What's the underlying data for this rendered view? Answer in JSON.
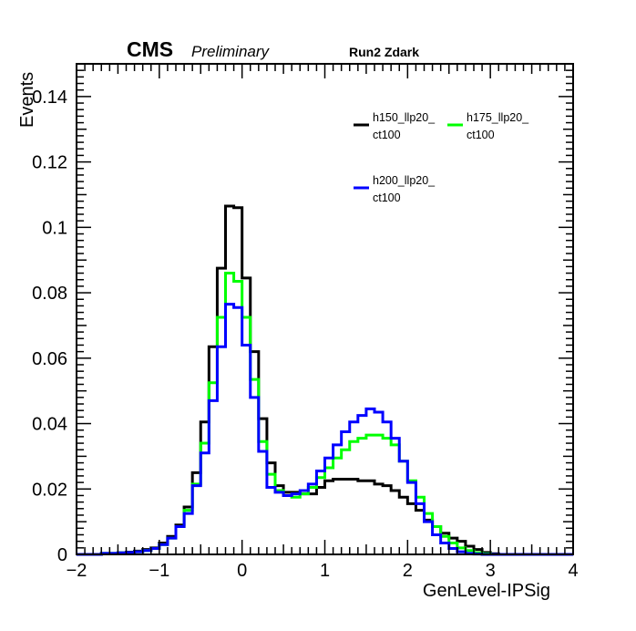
{
  "header": {
    "experiment": "CMS",
    "status": "Preliminary",
    "label": "Run2 Zdark"
  },
  "chart_data": {
    "type": "histogram",
    "xlabel": "GenLevel-IPSig",
    "ylabel": "Events",
    "xlim": [
      -2,
      4
    ],
    "ylim": [
      0,
      0.15
    ],
    "xticks": [
      -2,
      -1,
      0,
      1,
      2,
      3,
      4
    ],
    "xtick_labels": [
      "−2",
      "−1",
      "0",
      "1",
      "2",
      "3",
      "4"
    ],
    "yticks": [
      0,
      0.02,
      0.04,
      0.06,
      0.08,
      0.1,
      0.12,
      0.14
    ],
    "ytick_labels": [
      "0",
      "0.02",
      "0.04",
      "0.06",
      "0.08",
      "0.1",
      "0.12",
      "0.14"
    ],
    "bin_width": 0.1,
    "bin_edges_start": -2.0,
    "legend_placement": "top-right",
    "grid": false,
    "series": [
      {
        "name_line1": "h150_llp20_",
        "name_line2": "ct100",
        "color": "#000000",
        "values": [
          0,
          0,
          0,
          0.0003,
          0.0003,
          0.0005,
          0.0007,
          0.001,
          0.0015,
          0.002,
          0.0035,
          0.0055,
          0.009,
          0.0145,
          0.025,
          0.0405,
          0.0635,
          0.0875,
          0.1065,
          0.106,
          0.0845,
          0.062,
          0.0415,
          0.028,
          0.021,
          0.019,
          0.019,
          0.0185,
          0.0185,
          0.0205,
          0.0225,
          0.023,
          0.023,
          0.023,
          0.0225,
          0.0225,
          0.0215,
          0.021,
          0.0195,
          0.0175,
          0.0155,
          0.0135,
          0.0105,
          0.0085,
          0.0065,
          0.005,
          0.004,
          0.0025,
          0.0015,
          0.0006,
          0.0002,
          0,
          0,
          0,
          0,
          0,
          0,
          0,
          0,
          0
        ]
      },
      {
        "name_line1": "h175_llp20_",
        "name_line2": "ct100",
        "color": "#00ff00",
        "values": [
          0,
          0,
          0,
          0.0003,
          0.0003,
          0.0005,
          0.0006,
          0.0008,
          0.0012,
          0.0018,
          0.003,
          0.005,
          0.0085,
          0.0135,
          0.0215,
          0.034,
          0.0525,
          0.0725,
          0.086,
          0.0835,
          0.0725,
          0.0535,
          0.0345,
          0.0245,
          0.0195,
          0.018,
          0.0175,
          0.0185,
          0.0205,
          0.0235,
          0.0265,
          0.0295,
          0.032,
          0.0345,
          0.0355,
          0.0365,
          0.0365,
          0.0355,
          0.0335,
          0.0285,
          0.0225,
          0.0175,
          0.0125,
          0.0085,
          0.0055,
          0.0035,
          0.002,
          0.0012,
          0.0005,
          0.0002,
          0,
          0,
          0,
          0,
          0,
          0,
          0,
          0,
          0,
          0
        ]
      },
      {
        "name_line1": "h200_llp20_",
        "name_line2": "ct100",
        "color": "#0000ff",
        "values": [
          0,
          0,
          0,
          0.0003,
          0.0003,
          0.0005,
          0.0006,
          0.0008,
          0.0012,
          0.0018,
          0.003,
          0.005,
          0.0085,
          0.0125,
          0.021,
          0.031,
          0.047,
          0.0635,
          0.0765,
          0.0755,
          0.064,
          0.048,
          0.0315,
          0.0205,
          0.019,
          0.018,
          0.0185,
          0.0195,
          0.0215,
          0.0255,
          0.0295,
          0.0335,
          0.0375,
          0.0405,
          0.0425,
          0.0445,
          0.0435,
          0.0405,
          0.0355,
          0.0285,
          0.022,
          0.0155,
          0.01,
          0.006,
          0.0035,
          0.0018,
          0.0008,
          0.0003,
          0.0001,
          0,
          0,
          0,
          0,
          0,
          0,
          0,
          0,
          0,
          0,
          0
        ]
      }
    ]
  }
}
